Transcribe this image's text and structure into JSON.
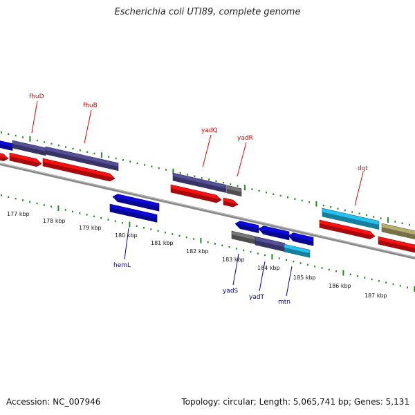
{
  "title": "Escherichia coli UTI89, complete genome",
  "footer": {
    "accession": "Accession: NC_007946",
    "stats": "Topology: circular; Length: 5,065,741 bp; Genes: 5,131"
  },
  "colors": {
    "background": "#ffffff",
    "axis": "#888888",
    "tick_major": "#1f8a1f",
    "tick_minor": "#1f8a1f",
    "forward_label": "#dd0000",
    "reverse_label": "#0000aa",
    "cds_red": "#ff1010",
    "blue": "#0a0ae0",
    "purple": "#55509a",
    "gray": "#777777",
    "cyan": "#23c2f0",
    "khaki": "#b6ad6e"
  },
  "scale": {
    "tick_labels": [
      "177 kbp",
      "178 kbp",
      "179 kbp",
      "180 kbp",
      "181 kbp",
      "182 kbp",
      "183 kbp",
      "184 kbp",
      "185 kbp",
      "186 kbp",
      "187 kbp"
    ]
  },
  "forward_labels": [
    {
      "name": "fhuD",
      "icon": "label-callout-line"
    },
    {
      "name": "fhuB",
      "icon": "label-callout-line"
    },
    {
      "name": "yadQ",
      "icon": "label-callout-line"
    },
    {
      "name": "yadR",
      "icon": "label-callout-line"
    },
    {
      "name": "dgt",
      "icon": "label-callout-line"
    }
  ],
  "reverse_labels": [
    {
      "name": "hemL",
      "icon": "label-callout-line"
    },
    {
      "name": "yadS",
      "icon": "label-callout-line"
    },
    {
      "name": "yadT",
      "icon": "label-callout-line"
    },
    {
      "name": "mtn",
      "icon": "label-callout-line"
    }
  ]
}
